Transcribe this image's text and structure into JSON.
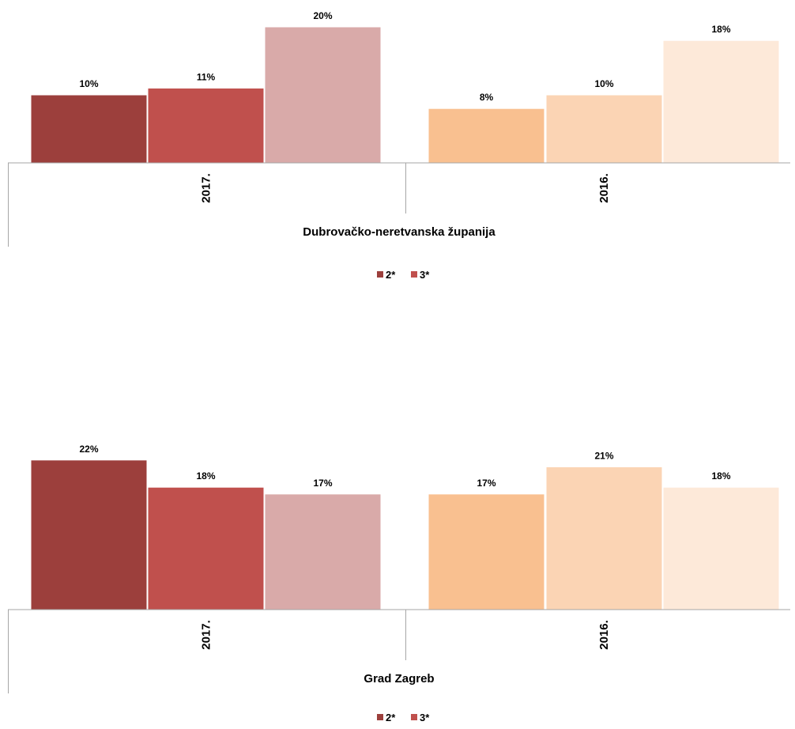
{
  "chart_data": [
    {
      "type": "bar",
      "title": "",
      "group_label": "Dubrovačko-neretvanska županija",
      "categories": [
        "2017.",
        "2016."
      ],
      "series": [
        {
          "name": "2*",
          "values": [
            10,
            8
          ]
        },
        {
          "name": "3*",
          "values": [
            11,
            10
          ]
        },
        {
          "values": [
            20,
            18
          ]
        }
      ],
      "data_labels": [
        [
          "10%",
          "11%",
          "20%"
        ],
        [
          "8%",
          "10%",
          "18%"
        ]
      ],
      "ylim": [
        0,
        24
      ],
      "grid": false,
      "legend": {
        "placement": "bottom",
        "entries": [
          "2*",
          "3*"
        ]
      },
      "colors": [
        [
          "#9C3F3C",
          "#C0504D",
          "#D9AAA9"
        ],
        [
          "#F9C090",
          "#FBD4B4",
          "#FDE9D9"
        ]
      ]
    },
    {
      "type": "bar",
      "title": "",
      "group_label": "Grad Zagreb",
      "categories": [
        "2017.",
        "2016."
      ],
      "series": [
        {
          "name": "2*",
          "values": [
            22,
            17
          ]
        },
        {
          "name": "3*",
          "values": [
            18,
            21
          ]
        },
        {
          "values": [
            17,
            18
          ]
        }
      ],
      "data_labels": [
        [
          "22%",
          "18%",
          "17%"
        ],
        [
          "17%",
          "21%",
          "18%"
        ]
      ],
      "ylim": [
        0,
        24
      ],
      "grid": false,
      "legend": {
        "placement": "bottom",
        "entries": [
          "2*",
          "3*"
        ]
      },
      "colors": [
        [
          "#9C3F3C",
          "#C0504D",
          "#D9AAA9"
        ],
        [
          "#F9C090",
          "#FBD4B4",
          "#FDE9D9"
        ]
      ]
    }
  ]
}
